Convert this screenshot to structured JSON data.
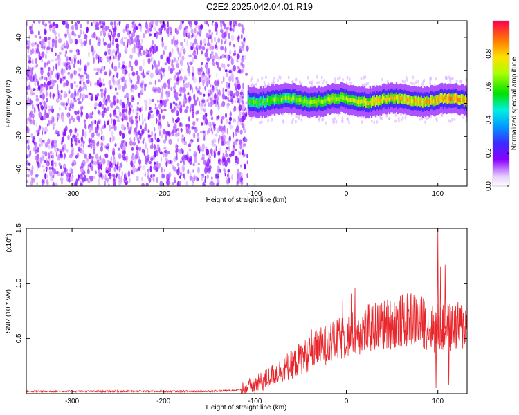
{
  "title": "C2E2.2025.042.04.01.R19",
  "chart_data": [
    {
      "type": "heatmap",
      "xlabel": "Height of straight line (km)",
      "ylabel": "Frequency (Hz)",
      "xlim": [
        -350,
        132
      ],
      "ylim": [
        -50,
        50
      ],
      "xticks": [
        -300,
        -200,
        -100,
        0,
        100
      ],
      "xtick_labels": [
        "-300",
        "-200",
        "-100",
        "0",
        "100"
      ],
      "yticks": [
        40,
        20,
        0,
        -20,
        -40
      ],
      "ytick_labels": [
        "40",
        "20",
        "0",
        "-20",
        "-40"
      ],
      "description_regions": [
        {
          "x_range": [
            -350,
            -108
          ],
          "f_range": [
            -50,
            50
          ],
          "normalized_amplitude": 0.1
        },
        {
          "x_range": [
            -108,
            132
          ],
          "f_center": 2,
          "f_halfwidth": 5,
          "normalized_amplitude_range": [
            0.3,
            0.95
          ]
        }
      ],
      "colorbar": {
        "label": "Normalized spectral amplitude",
        "range": [
          0.0,
          1.0
        ],
        "ticks": [
          "0.0",
          "0.2",
          "0.4",
          "0.6",
          "0.8"
        ]
      },
      "grid": false
    },
    {
      "type": "line",
      "xlabel": "Height of straight line (km)",
      "ylabel": "SNR (10 * v/v)",
      "multiplier_label": "(x10",
      "multiplier_exponent": "4",
      "xlim": [
        -350,
        132
      ],
      "ylim": [
        0,
        1.5
      ],
      "xticks": [
        -300,
        -200,
        -100,
        0,
        100
      ],
      "xtick_labels": [
        "-300",
        "-200",
        "-100",
        "0",
        "100"
      ],
      "yticks": [
        0.5,
        1.0,
        1.5
      ],
      "ytick_labels": [
        "0.5",
        "1.0",
        "1.5"
      ],
      "series": [
        {
          "color": "#e8262b",
          "x": [
            -350,
            -300,
            -250,
            -200,
            -150,
            -120,
            -110,
            -100,
            -90,
            -80,
            -70,
            -60,
            -50,
            -40,
            -30,
            -20,
            -10,
            0,
            10,
            20,
            30,
            40,
            50,
            60,
            70,
            80,
            90,
            95,
            100,
            105,
            110,
            115,
            120,
            132
          ],
          "y": [
            0.02,
            0.02,
            0.02,
            0.02,
            0.02,
            0.03,
            0.05,
            0.08,
            0.12,
            0.17,
            0.22,
            0.26,
            0.32,
            0.36,
            0.42,
            0.45,
            0.48,
            0.52,
            0.55,
            0.58,
            0.6,
            0.62,
            0.64,
            0.66,
            0.68,
            0.66,
            0.62,
            0.58,
            0.6,
            0.58,
            0.6,
            0.6,
            0.6,
            0.62
          ],
          "spikes": [
            {
              "x": 100,
              "y": 1.5
            },
            {
              "x": 103,
              "y": 1.15
            },
            {
              "x": 108,
              "y": 1.17
            },
            {
              "x": 98,
              "y": 0.05
            },
            {
              "x": 112,
              "y": 0.08
            }
          ]
        }
      ],
      "grid": false
    }
  ]
}
